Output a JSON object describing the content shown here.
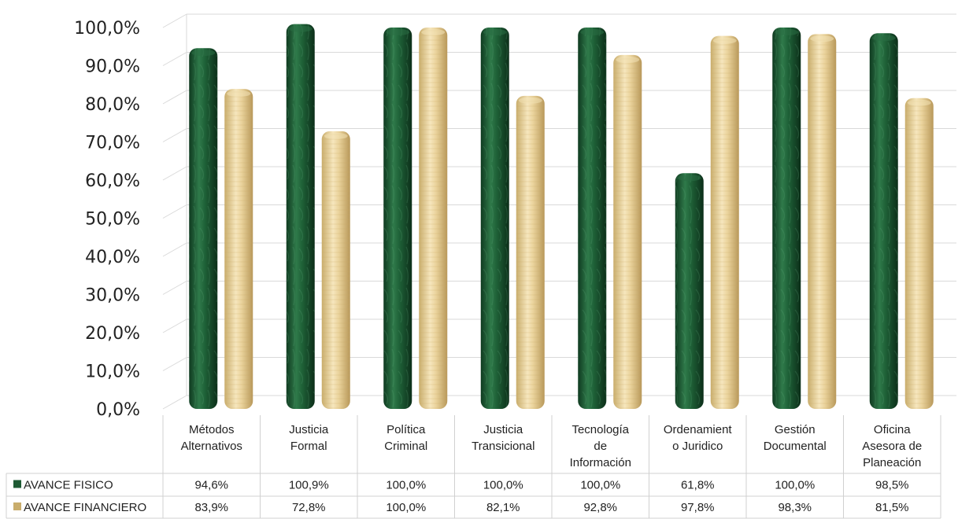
{
  "chart_data": {
    "type": "bar",
    "title": "",
    "xlabel": "",
    "ylabel": "",
    "ylim": [
      0,
      100
    ],
    "ytick_step": 10,
    "ytick_labels": [
      "0,0%",
      "10,0%",
      "20,0%",
      "30,0%",
      "40,0%",
      "50,0%",
      "60,0%",
      "70,0%",
      "80,0%",
      "90,0%",
      "100,0%"
    ],
    "categories": [
      [
        "Métodos",
        "Alternativos"
      ],
      [
        "Justicia",
        "Formal"
      ],
      [
        "Política",
        "Criminal"
      ],
      [
        "Justicia",
        "Transicional"
      ],
      [
        "Tecnología",
        "de",
        "Información"
      ],
      [
        "Ordenamient",
        "o Juridico"
      ],
      [
        "Gestión",
        "Documental"
      ],
      [
        "Oficina",
        "Asesora de",
        "Planeación"
      ]
    ],
    "series": [
      {
        "name": "AVANCE FISICO",
        "color": "#1e5a34",
        "values": [
          94.6,
          100.9,
          100.0,
          100.0,
          100.0,
          61.8,
          100.0,
          98.5
        ],
        "labels": [
          "94,6%",
          "100,9%",
          "100,0%",
          "100,0%",
          "100,0%",
          "61,8%",
          "100,0%",
          "98,5%"
        ]
      },
      {
        "name": "AVANCE FINANCIERO",
        "color": "#e8d29a",
        "values": [
          83.9,
          72.8,
          100.0,
          82.1,
          92.8,
          97.8,
          98.3,
          81.5
        ],
        "labels": [
          "83,9%",
          "72,8%",
          "100,0%",
          "82,1%",
          "92,8%",
          "97,8%",
          "98,3%",
          "81,5%"
        ]
      }
    ],
    "grid": true,
    "legend": "data-table"
  }
}
